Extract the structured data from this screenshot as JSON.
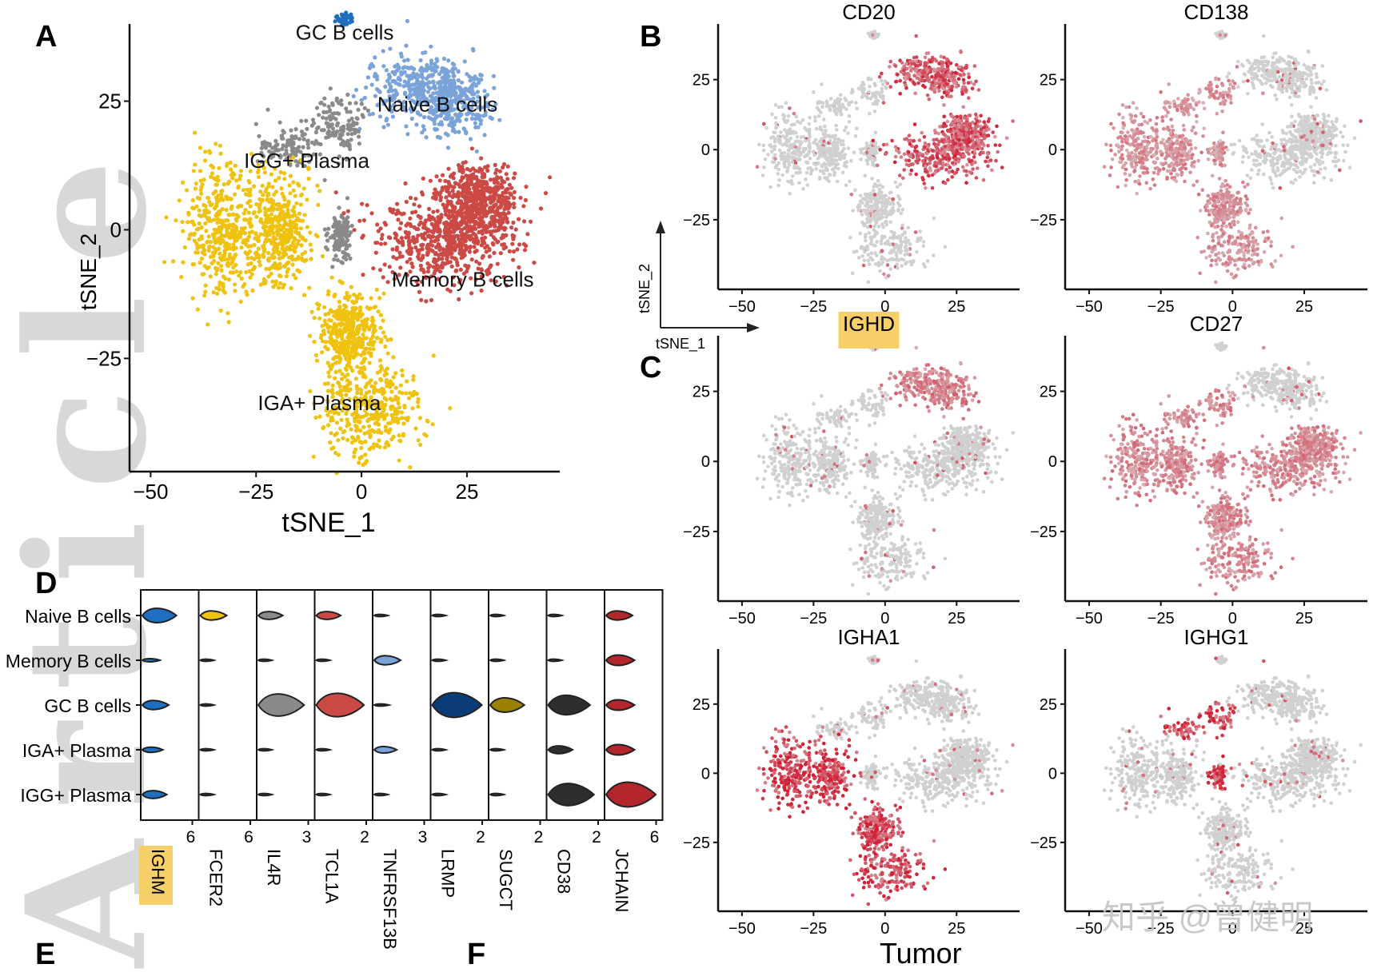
{
  "watermark": {
    "text": "Article",
    "credit": "知乎 @曾健明"
  },
  "colors": {
    "gc": "#1f6fc0",
    "naive": "#7aa3d9",
    "igg": "#8a8a8a",
    "memory": "#cc4a46",
    "iga": "#efc20f",
    "grey": "#d0d0d0",
    "red": "#d7263d",
    "highlight": "#f7cf68",
    "axis": "#111111"
  },
  "panel_labels": {
    "A": "A",
    "B": "B",
    "C": "C",
    "D": "D",
    "E": "E",
    "F": "F"
  },
  "chart_data": [
    {
      "id": "A",
      "type": "scatter",
      "title": "",
      "xlabel": "tSNE_1",
      "ylabel": "tSNE_2",
      "xlim": [
        -55,
        47
      ],
      "ylim": [
        -47,
        40
      ],
      "xticks": [
        -50,
        -25,
        0,
        25
      ],
      "yticks": [
        -25,
        0,
        25
      ],
      "series": [
        {
          "name": "GC B cells",
          "color_key": "gc",
          "label_at": [
            -4,
            37
          ]
        },
        {
          "name": "Naive B cells",
          "color_key": "naive",
          "label_at": [
            18,
            23
          ]
        },
        {
          "name": "IGG+ Plasma",
          "color_key": "igg",
          "label_at": [
            -13,
            12
          ]
        },
        {
          "name": "Memory B cells",
          "color_key": "memory",
          "label_at": [
            24,
            -11
          ]
        },
        {
          "name": "IGA+ Plasma",
          "color_key": "iga",
          "label_at": [
            -10,
            -35
          ]
        }
      ]
    },
    {
      "id": "B",
      "type": "scatter",
      "xlabel": "tSNE_1",
      "ylabel": "tSNE_2",
      "xlim": [
        -55,
        47
      ],
      "ylim": [
        -47,
        42
      ],
      "xticks": [
        -50,
        -25,
        0,
        25
      ],
      "yticks": [
        -25,
        0,
        25
      ],
      "features": [
        {
          "name": "CD20",
          "highlight": false,
          "high_clusters": [
            "naive",
            "memory"
          ],
          "strength": 0.8
        },
        {
          "name": "CD138",
          "highlight": false,
          "high_clusters": [
            "iga",
            "igg"
          ],
          "strength": 0.45
        },
        {
          "name": "IGHD",
          "highlight": true,
          "high_clusters": [
            "naive"
          ],
          "strength": 0.55
        },
        {
          "name": "CD27",
          "highlight": false,
          "high_clusters": [
            "iga",
            "igg",
            "memory"
          ],
          "strength": 0.5
        },
        {
          "name": "IGHA1",
          "highlight": false,
          "high_clusters": [
            "iga"
          ],
          "strength": 0.95
        },
        {
          "name": "IGHG1",
          "highlight": false,
          "high_clusters": [
            "igg"
          ],
          "strength": 0.95
        }
      ]
    },
    {
      "id": "D",
      "type": "violin",
      "rows": [
        "Naive B cells",
        "Memory B cells",
        "GC B cells",
        "IGA+ Plasma",
        "IGG+ Plasma"
      ],
      "genes": [
        {
          "name": "IGHM",
          "highlight": true,
          "max": 6,
          "color_key": "gc",
          "widths": [
            0.55,
            0.12,
            0.35,
            0.2,
            0.3
          ]
        },
        {
          "name": "FCER2",
          "highlight": false,
          "max": 6,
          "color_key": "iga",
          "widths": [
            0.35,
            0.02,
            0.02,
            0.02,
            0.02
          ]
        },
        {
          "name": "IL4R",
          "highlight": false,
          "max": 3,
          "color_key": "igg",
          "widths": [
            0.3,
            0.02,
            0.85,
            0.02,
            0.02
          ]
        },
        {
          "name": "TCL1A",
          "highlight": false,
          "max": 2,
          "color_key": "memory",
          "widths": [
            0.3,
            0.02,
            0.9,
            0.02,
            0.02
          ]
        },
        {
          "name": "TNFRSF13B",
          "highlight": false,
          "max": 3,
          "color_key": "naive",
          "widths": [
            0.02,
            0.35,
            0.05,
            0.25,
            0.02
          ]
        },
        {
          "name": "LRMP",
          "highlight": false,
          "max": 2,
          "color_key": "navy",
          "widths": [
            0.02,
            0.02,
            0.95,
            0.02,
            0.02
          ]
        },
        {
          "name": "SUGCT",
          "highlight": false,
          "max": 2,
          "color_key": "olive",
          "widths": [
            0.02,
            0.02,
            0.55,
            0.02,
            0.02
          ]
        },
        {
          "name": "CD38",
          "highlight": false,
          "max": 2,
          "color_key": "dark",
          "widths": [
            0.02,
            0.02,
            0.75,
            0.3,
            0.85
          ]
        },
        {
          "name": "JCHAIN",
          "highlight": false,
          "max": 6,
          "color_key": "darkred",
          "widths": [
            0.35,
            0.4,
            0.4,
            0.4,
            0.95
          ]
        }
      ]
    }
  ],
  "footer": {
    "tumor_label": "Tumor"
  }
}
